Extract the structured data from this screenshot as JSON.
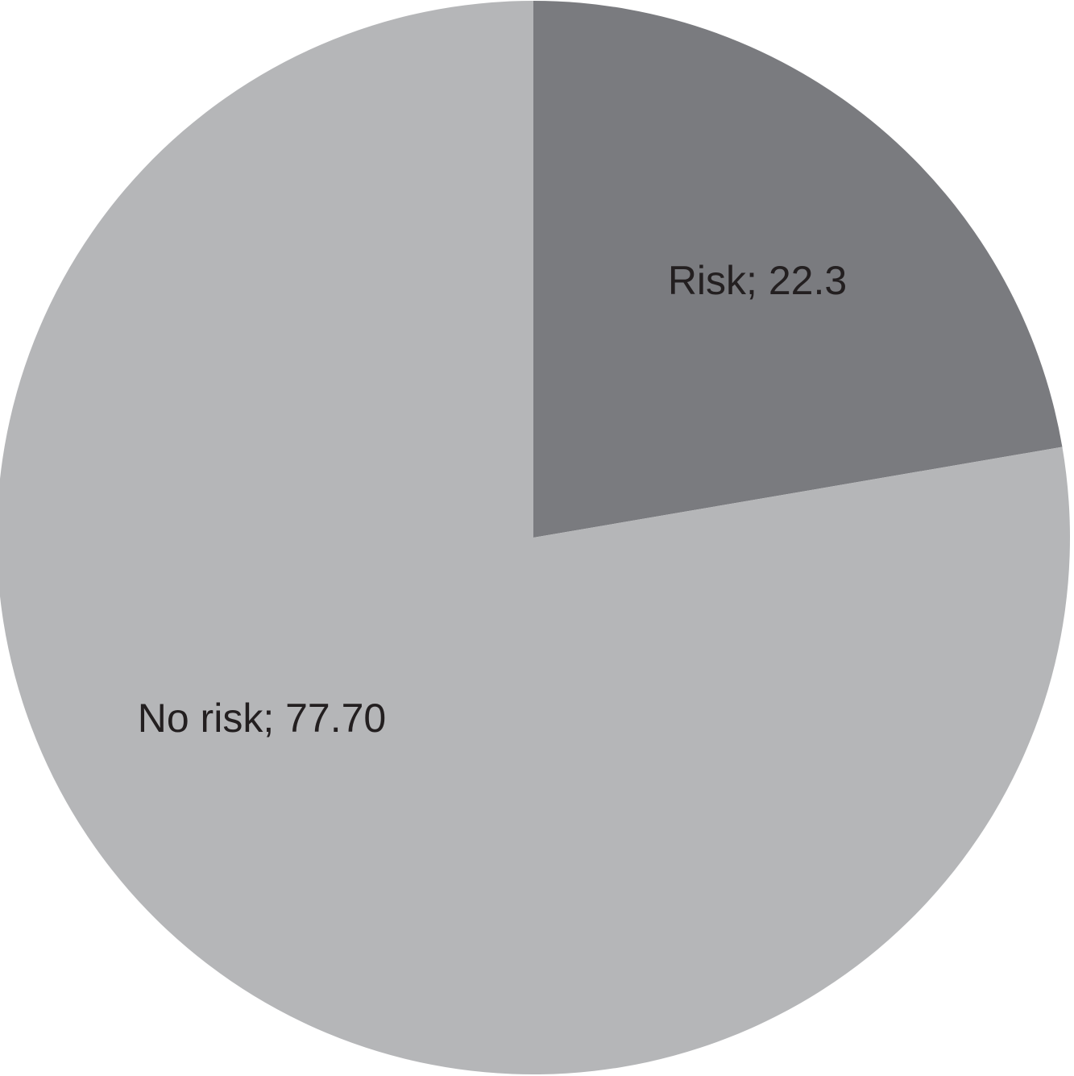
{
  "chart_data": {
    "type": "pie",
    "values": [
      22.3,
      77.7
    ],
    "value_labels": [
      "Risk; 22.3",
      "No risk; 77.70"
    ],
    "colors": [
      "#7a7b7f",
      "#b5b6b8"
    ]
  }
}
